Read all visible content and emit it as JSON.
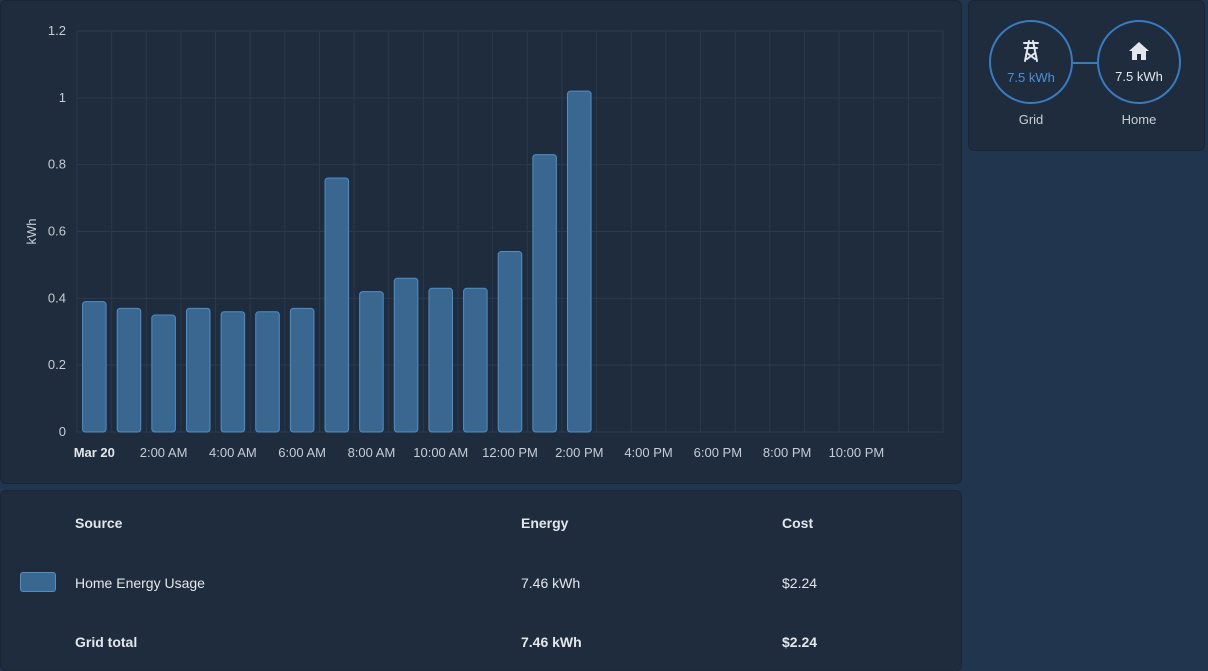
{
  "chart_data": {
    "type": "bar",
    "ylabel": "kWh",
    "ylim": [
      0,
      1.2
    ],
    "yticks": [
      "0",
      "0.2",
      "0.4",
      "0.6",
      "0.8",
      "1",
      "1.2"
    ],
    "x_tick_labels": [
      "Mar 20",
      "2:00 AM",
      "4:00 AM",
      "6:00 AM",
      "8:00 AM",
      "10:00 AM",
      "12:00 PM",
      "2:00 PM",
      "4:00 PM",
      "6:00 PM",
      "8:00 PM",
      "10:00 PM"
    ],
    "categories": [
      "12 AM",
      "1 AM",
      "2 AM",
      "3 AM",
      "4 AM",
      "5 AM",
      "6 AM",
      "7 AM",
      "8 AM",
      "9 AM",
      "10 AM",
      "11 AM",
      "12 PM",
      "1 PM",
      "2 PM"
    ],
    "values": [
      0.39,
      0.37,
      0.35,
      0.37,
      0.36,
      0.36,
      0.37,
      0.76,
      0.42,
      0.46,
      0.43,
      0.43,
      0.54,
      0.83,
      1.02
    ],
    "series_color": "#3a6790",
    "series_border": "#4f8ec8",
    "grid": true
  },
  "energy_flow": {
    "grid": {
      "value": "7.5 kWh",
      "label": "Grid",
      "icon": "transmission-tower-icon"
    },
    "home": {
      "value": "7.5 kWh",
      "label": "Home",
      "icon": "home-icon"
    }
  },
  "table": {
    "headers": {
      "source": "Source",
      "energy": "Energy",
      "cost": "Cost"
    },
    "rows": [
      {
        "source": "Home Energy Usage",
        "energy": "7.46 kWh",
        "cost": "$2.24"
      }
    ],
    "total": {
      "source": "Grid total",
      "energy": "7.46 kWh",
      "cost": "$2.24"
    }
  }
}
